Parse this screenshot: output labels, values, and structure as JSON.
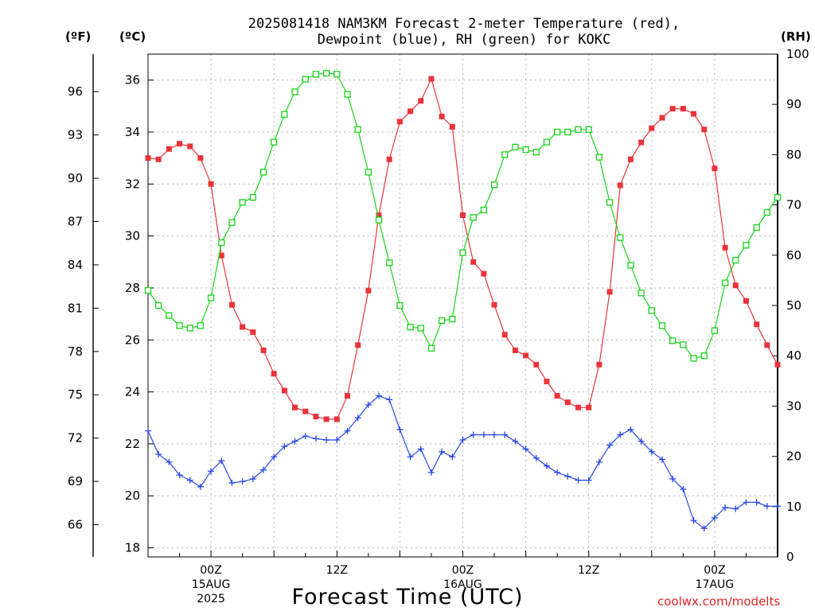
{
  "chart_data": {
    "type": "line",
    "title_lines": [
      "2025081418 NAM3KM Forecast 2-meter Temperature (red),",
      "Dewpoint (blue), RH (green) for KOKC"
    ],
    "xlabel": "Forecast Time (UTC)",
    "credit": "coolwx.com/modelts",
    "x_ticks": [
      {
        "hour": 6,
        "lines": [
          "00Z",
          "15AUG",
          "2025"
        ]
      },
      {
        "hour": 18,
        "lines": [
          "12Z"
        ]
      },
      {
        "hour": 30,
        "lines": [
          "00Z",
          "16AUG"
        ]
      },
      {
        "hour": 42,
        "lines": [
          "12Z"
        ]
      },
      {
        "hour": 54,
        "lines": [
          "00Z",
          "17AUG"
        ]
      }
    ],
    "x_range_hours": [
      0,
      60
    ],
    "x_units": "forecast hour from 2025-08-14 18Z",
    "y_left_f": {
      "unit_label": "(ºF)",
      "ticks": [
        66,
        69,
        72,
        75,
        78,
        81,
        84,
        87,
        90,
        93,
        96
      ]
    },
    "y_left_c": {
      "unit_label": "(ºC)",
      "ticks": [
        18,
        20,
        22,
        24,
        26,
        28,
        30,
        32,
        34,
        36
      ],
      "range": [
        17.65,
        37.0
      ]
    },
    "y_right_rh": {
      "unit_label": "(RH)",
      "ticks": [
        0,
        10,
        20,
        30,
        40,
        50,
        60,
        70,
        80,
        90,
        100
      ],
      "range": [
        0,
        100
      ]
    },
    "grid": true,
    "series": [
      {
        "name": "Temperature",
        "axis": "C",
        "color": "#e8343a",
        "marker": "filled-square",
        "values": [
          33.0,
          32.95,
          33.35,
          33.55,
          33.45,
          33.0,
          32.0,
          29.25,
          27.35,
          26.5,
          26.3,
          25.6,
          24.7,
          24.05,
          23.4,
          23.25,
          23.05,
          22.95,
          22.95,
          23.85,
          25.8,
          27.9,
          30.8,
          32.95,
          34.4,
          34.8,
          35.2,
          36.05,
          34.6,
          34.2,
          30.8,
          29.0,
          28.55,
          27.35,
          26.2,
          25.6,
          25.4,
          25.05,
          24.4,
          23.85,
          23.6,
          23.4,
          23.4,
          25.05,
          27.85,
          31.95,
          32.95,
          33.6,
          34.15,
          34.55,
          34.9,
          34.9,
          34.7,
          34.1,
          32.6,
          29.55,
          28.1,
          27.5,
          26.6,
          25.8,
          25.05
        ]
      },
      {
        "name": "Dewpoint",
        "axis": "C",
        "color": "#2848e8",
        "marker": "plus",
        "values": [
          22.5,
          21.6,
          21.3,
          20.8,
          20.6,
          20.35,
          20.95,
          21.35,
          20.5,
          20.55,
          20.65,
          21.0,
          21.5,
          21.9,
          22.1,
          22.3,
          22.2,
          22.15,
          22.15,
          22.5,
          23.0,
          23.5,
          23.85,
          23.7,
          22.55,
          21.5,
          21.8,
          20.9,
          21.7,
          21.5,
          22.15,
          22.35,
          22.35,
          22.35,
          22.35,
          22.1,
          21.8,
          21.45,
          21.15,
          20.9,
          20.75,
          20.6,
          20.6,
          21.3,
          21.95,
          22.35,
          22.55,
          22.1,
          21.7,
          21.4,
          20.65,
          20.25,
          19.05,
          18.75,
          19.15,
          19.55,
          19.5,
          19.75,
          19.75,
          19.6,
          19.6
        ]
      },
      {
        "name": "RH",
        "axis": "RH",
        "color": "#18d418",
        "marker": "open-square",
        "values": [
          53,
          50,
          48,
          46,
          45.5,
          46,
          51.5,
          62.5,
          66.5,
          70.5,
          71.5,
          76.5,
          82.5,
          88,
          92.5,
          95,
          96,
          96.2,
          96,
          92,
          85,
          76.5,
          67,
          58.5,
          50,
          45.7,
          45.5,
          41.5,
          47,
          47.3,
          60.5,
          67.5,
          69,
          74,
          80,
          81.5,
          81,
          80.5,
          82.5,
          84.5,
          84.5,
          85,
          85,
          79.5,
          70.5,
          63.5,
          58,
          52.5,
          49,
          46,
          43,
          42.2,
          39.5,
          40,
          45,
          54.5,
          59,
          62,
          65.5,
          68.5,
          71.5
        ]
      }
    ]
  }
}
